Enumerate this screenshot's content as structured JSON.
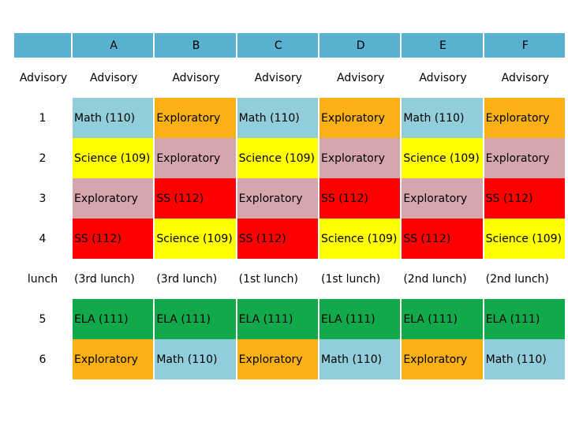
{
  "header": {
    "columns": [
      "",
      "A",
      "B",
      "C",
      "D",
      "E",
      "F"
    ]
  },
  "advisory_row": {
    "label": "Advisory",
    "cells": [
      "Advisory",
      "Advisory",
      "Advisory",
      "Advisory",
      "Advisory",
      "Advisory"
    ]
  },
  "rows": [
    {
      "label": "1",
      "cells": [
        "Math (110)",
        "Exploratory",
        "Math (110)",
        "Exploratory",
        "Math (110)",
        "Exploratory"
      ],
      "colors": [
        "#92cddc",
        "#fbb115",
        "#92cddc",
        "#fbb115",
        "#92cddc",
        "#fbb115"
      ]
    },
    {
      "label": "2",
      "cells": [
        "Science (109)",
        "Exploratory",
        "Science (109)",
        "Exploratory",
        "Science (109)",
        "Exploratory"
      ],
      "colors": [
        "#ffff00",
        "#d5a6ad",
        "#ffff00",
        "#d5a6ad",
        "#ffff00",
        "#d5a6ad"
      ]
    },
    {
      "label": "3",
      "cells": [
        "Exploratory",
        "SS (112)",
        "Exploratory",
        "SS (112)",
        "Exploratory",
        "SS (112)"
      ],
      "colors": [
        "#d5a6ad",
        "#ff0000",
        "#d5a6ad",
        "#ff0000",
        "#d5a6ad",
        "#ff0000"
      ]
    },
    {
      "label": "4",
      "cells": [
        "SS (112)",
        "Science (109)",
        "SS (112)",
        "Science (109)",
        "SS (112)",
        "Science (109)"
      ],
      "colors": [
        "#ff0000",
        "#ffff00",
        "#ff0000",
        "#ffff00",
        "#ff0000",
        "#ffff00"
      ]
    },
    {
      "label": "lunch",
      "cells": [
        "(3rd lunch)",
        "(3rd lunch)",
        "(1st lunch)",
        "(1st lunch)",
        "(2nd lunch)",
        "(2nd lunch)"
      ],
      "colors": [
        "#ffffff",
        "#ffffff",
        "#ffffff",
        "#ffffff",
        "#ffffff",
        "#ffffff"
      ]
    },
    {
      "label": "5",
      "cells": [
        "ELA (111)",
        "ELA (111)",
        "ELA (111)",
        "ELA (111)",
        "ELA (111)",
        "ELA (111)"
      ],
      "colors": [
        "#12a94b",
        "#12a94b",
        "#12a94b",
        "#12a94b",
        "#12a94b",
        "#12a94b"
      ]
    },
    {
      "label": "6",
      "cells": [
        "Exploratory",
        "Math (110)",
        "Exploratory",
        "Math (110)",
        "Exploratory",
        "Math (110)"
      ],
      "colors": [
        "#fbb115",
        "#92cddc",
        "#fbb115",
        "#92cddc",
        "#fbb115",
        "#92cddc"
      ]
    }
  ]
}
